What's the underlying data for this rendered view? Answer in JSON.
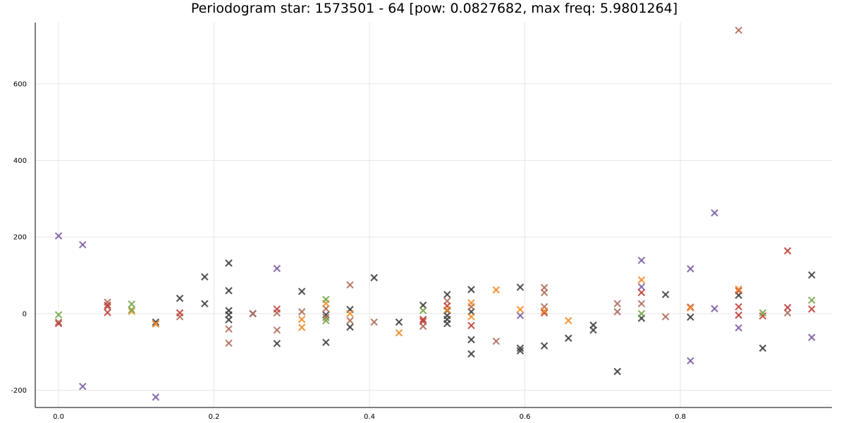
{
  "chart_data": {
    "type": "scatter",
    "title": "Periodogram star: 1573501 - 64 [pow: 0.0827682, max freq: 5.9801264]",
    "xlabel": "",
    "ylabel": "",
    "xlim": [
      -0.03,
      0.995
    ],
    "ylim": [
      -245,
      760
    ],
    "xticks": [
      0.0,
      0.2,
      0.4,
      0.6,
      0.8
    ],
    "xtick_labels": [
      "0.0",
      "0.2",
      "0.4",
      "0.6",
      "0.8"
    ],
    "yticks": [
      -200,
      0,
      200,
      400,
      600
    ],
    "ytick_labels": [
      "-200",
      "0",
      "200",
      "400",
      "600"
    ],
    "grid": true,
    "legend": "none",
    "marker": "x",
    "series": [
      {
        "color": "#7d5fa3",
        "points": [
          [
            0.0,
            203
          ],
          [
            0.031,
            180
          ],
          [
            0.031,
            -190
          ],
          [
            0.125,
            -218
          ],
          [
            0.281,
            118
          ],
          [
            0.594,
            -5
          ],
          [
            0.75,
            139
          ],
          [
            0.75,
            70
          ],
          [
            0.813,
            117
          ],
          [
            0.813,
            -123
          ],
          [
            0.844,
            263
          ],
          [
            0.844,
            13
          ],
          [
            0.875,
            -37
          ],
          [
            0.969,
            -62
          ]
        ]
      },
      {
        "color": "#404040",
        "points": [
          [
            0.125,
            -22
          ],
          [
            0.156,
            40
          ],
          [
            0.188,
            96
          ],
          [
            0.188,
            26
          ],
          [
            0.219,
            132
          ],
          [
            0.219,
            60
          ],
          [
            0.219,
            8
          ],
          [
            0.219,
            -3
          ],
          [
            0.219,
            -16
          ],
          [
            0.25,
            0
          ],
          [
            0.281,
            -78
          ],
          [
            0.313,
            58
          ],
          [
            0.344,
            -75
          ],
          [
            0.344,
            -3
          ],
          [
            0.375,
            11
          ],
          [
            0.375,
            -35
          ],
          [
            0.406,
            94
          ],
          [
            0.438,
            -22
          ],
          [
            0.469,
            22
          ],
          [
            0.5,
            50
          ],
          [
            0.5,
            8
          ],
          [
            0.5,
            -5
          ],
          [
            0.5,
            -15
          ],
          [
            0.5,
            -26
          ],
          [
            0.531,
            63
          ],
          [
            0.531,
            5
          ],
          [
            0.531,
            -68
          ],
          [
            0.531,
            -105
          ],
          [
            0.594,
            69
          ],
          [
            0.594,
            -90
          ],
          [
            0.594,
            -97
          ],
          [
            0.625,
            -84
          ],
          [
            0.656,
            -64
          ],
          [
            0.688,
            -30
          ],
          [
            0.688,
            -43
          ],
          [
            0.719,
            -151
          ],
          [
            0.75,
            -12
          ],
          [
            0.781,
            50
          ],
          [
            0.813,
            -9
          ],
          [
            0.875,
            48
          ],
          [
            0.906,
            -90
          ],
          [
            0.969,
            101
          ]
        ]
      },
      {
        "color": "#b06e5c",
        "points": [
          [
            0.0,
            -22
          ],
          [
            0.063,
            30
          ],
          [
            0.063,
            18
          ],
          [
            0.125,
            -26
          ],
          [
            0.156,
            -8
          ],
          [
            0.219,
            -40
          ],
          [
            0.219,
            -77
          ],
          [
            0.25,
            0
          ],
          [
            0.281,
            2
          ],
          [
            0.281,
            -43
          ],
          [
            0.313,
            5
          ],
          [
            0.344,
            13
          ],
          [
            0.344,
            -10
          ],
          [
            0.375,
            75
          ],
          [
            0.375,
            -18
          ],
          [
            0.406,
            -22
          ],
          [
            0.469,
            -33
          ],
          [
            0.5,
            33
          ],
          [
            0.531,
            18
          ],
          [
            0.563,
            -72
          ],
          [
            0.625,
            68
          ],
          [
            0.625,
            55
          ],
          [
            0.625,
            18
          ],
          [
            0.719,
            26
          ],
          [
            0.719,
            5
          ],
          [
            0.75,
            26
          ],
          [
            0.781,
            -8
          ],
          [
            0.875,
            740
          ],
          [
            0.938,
            2
          ]
        ]
      },
      {
        "color": "#c0403a",
        "points": [
          [
            0.0,
            -26
          ],
          [
            0.063,
            22
          ],
          [
            0.063,
            3
          ],
          [
            0.156,
            2
          ],
          [
            0.281,
            12
          ],
          [
            0.469,
            -15
          ],
          [
            0.469,
            -20
          ],
          [
            0.5,
            20
          ],
          [
            0.531,
            -31
          ],
          [
            0.625,
            2
          ],
          [
            0.75,
            55
          ],
          [
            0.813,
            17
          ],
          [
            0.875,
            60
          ],
          [
            0.875,
            18
          ],
          [
            0.875,
            -4
          ],
          [
            0.906,
            -6
          ],
          [
            0.938,
            164
          ],
          [
            0.938,
            16
          ],
          [
            0.969,
            12
          ]
        ]
      },
      {
        "color": "#f28e2b",
        "points": [
          [
            0.094,
            6
          ],
          [
            0.125,
            -27
          ],
          [
            0.313,
            -15
          ],
          [
            0.313,
            -36
          ],
          [
            0.344,
            27
          ],
          [
            0.375,
            0
          ],
          [
            0.438,
            -50
          ],
          [
            0.5,
            10
          ],
          [
            0.531,
            28
          ],
          [
            0.531,
            -8
          ],
          [
            0.563,
            62
          ],
          [
            0.594,
            11
          ],
          [
            0.625,
            7
          ],
          [
            0.656,
            -18
          ],
          [
            0.75,
            88
          ],
          [
            0.813,
            15
          ],
          [
            0.875,
            64
          ]
        ]
      },
      {
        "color": "#76a84a",
        "points": [
          [
            0.0,
            -3
          ],
          [
            0.094,
            25
          ],
          [
            0.094,
            10
          ],
          [
            0.344,
            37
          ],
          [
            0.344,
            -18
          ],
          [
            0.469,
            8
          ],
          [
            0.75,
            0
          ],
          [
            0.906,
            2
          ],
          [
            0.969,
            35
          ]
        ]
      }
    ]
  }
}
